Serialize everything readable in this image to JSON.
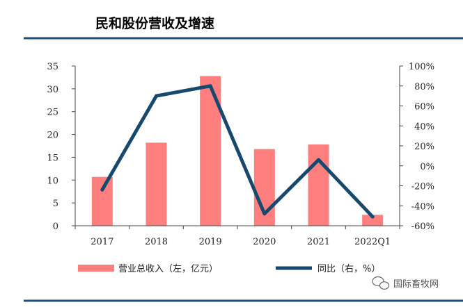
{
  "title": "民和股份营收及增速",
  "watermark": "国际畜牧网",
  "colors": {
    "bar": "#FF7F7F",
    "line": "#17496E",
    "rule": "#1F4E79"
  },
  "chart_data": {
    "type": "bar+line",
    "categories": [
      "2017",
      "2018",
      "2019",
      "2020",
      "2021",
      "2022Q1"
    ],
    "series": [
      {
        "name": "营业总收入（左，亿元）",
        "type": "bar",
        "axis": "left",
        "values": [
          10.7,
          18.2,
          32.8,
          16.8,
          17.8,
          2.4
        ]
      },
      {
        "name": "同比（右，%）",
        "type": "line",
        "axis": "right",
        "values": [
          -24,
          70,
          80,
          -48,
          6,
          -51
        ]
      }
    ],
    "y_left": {
      "range": [
        0,
        35
      ],
      "ticks": [
        "0",
        "5",
        "10",
        "15",
        "20",
        "25",
        "30",
        "35"
      ]
    },
    "y_right": {
      "range": [
        -60,
        100
      ],
      "ticks": [
        "-60%",
        "-40%",
        "-20%",
        "0%",
        "20%",
        "40%",
        "60%",
        "80%",
        "100%"
      ]
    },
    "grid": false,
    "legend": "bottom"
  }
}
